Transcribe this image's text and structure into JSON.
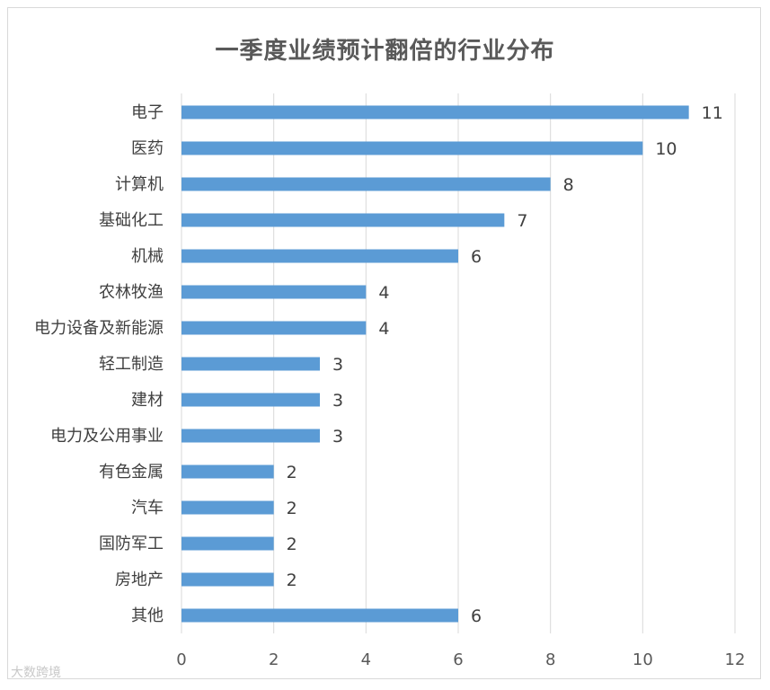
{
  "chart_data": {
    "type": "bar",
    "orientation": "horizontal",
    "title": "一季度业绩预计翻倍的行业分布",
    "categories": [
      "电子",
      "医药",
      "计算机",
      "基础化工",
      "机械",
      "农林牧渔",
      "电力设备及新能源",
      "轻工制造",
      "建材",
      "电力及公用事业",
      "有色金属",
      "汽车",
      "国防军工",
      "房地产",
      "其他"
    ],
    "values": [
      11,
      10,
      8,
      7,
      6,
      4,
      4,
      3,
      3,
      3,
      2,
      2,
      2,
      2,
      6
    ],
    "xlim": [
      0,
      12
    ],
    "xticks": [
      0,
      2,
      4,
      6,
      8,
      10,
      12
    ],
    "grid": "vertical",
    "legend": "none",
    "bar_color": "#5b9bd5"
  },
  "watermark": "大数跨境"
}
